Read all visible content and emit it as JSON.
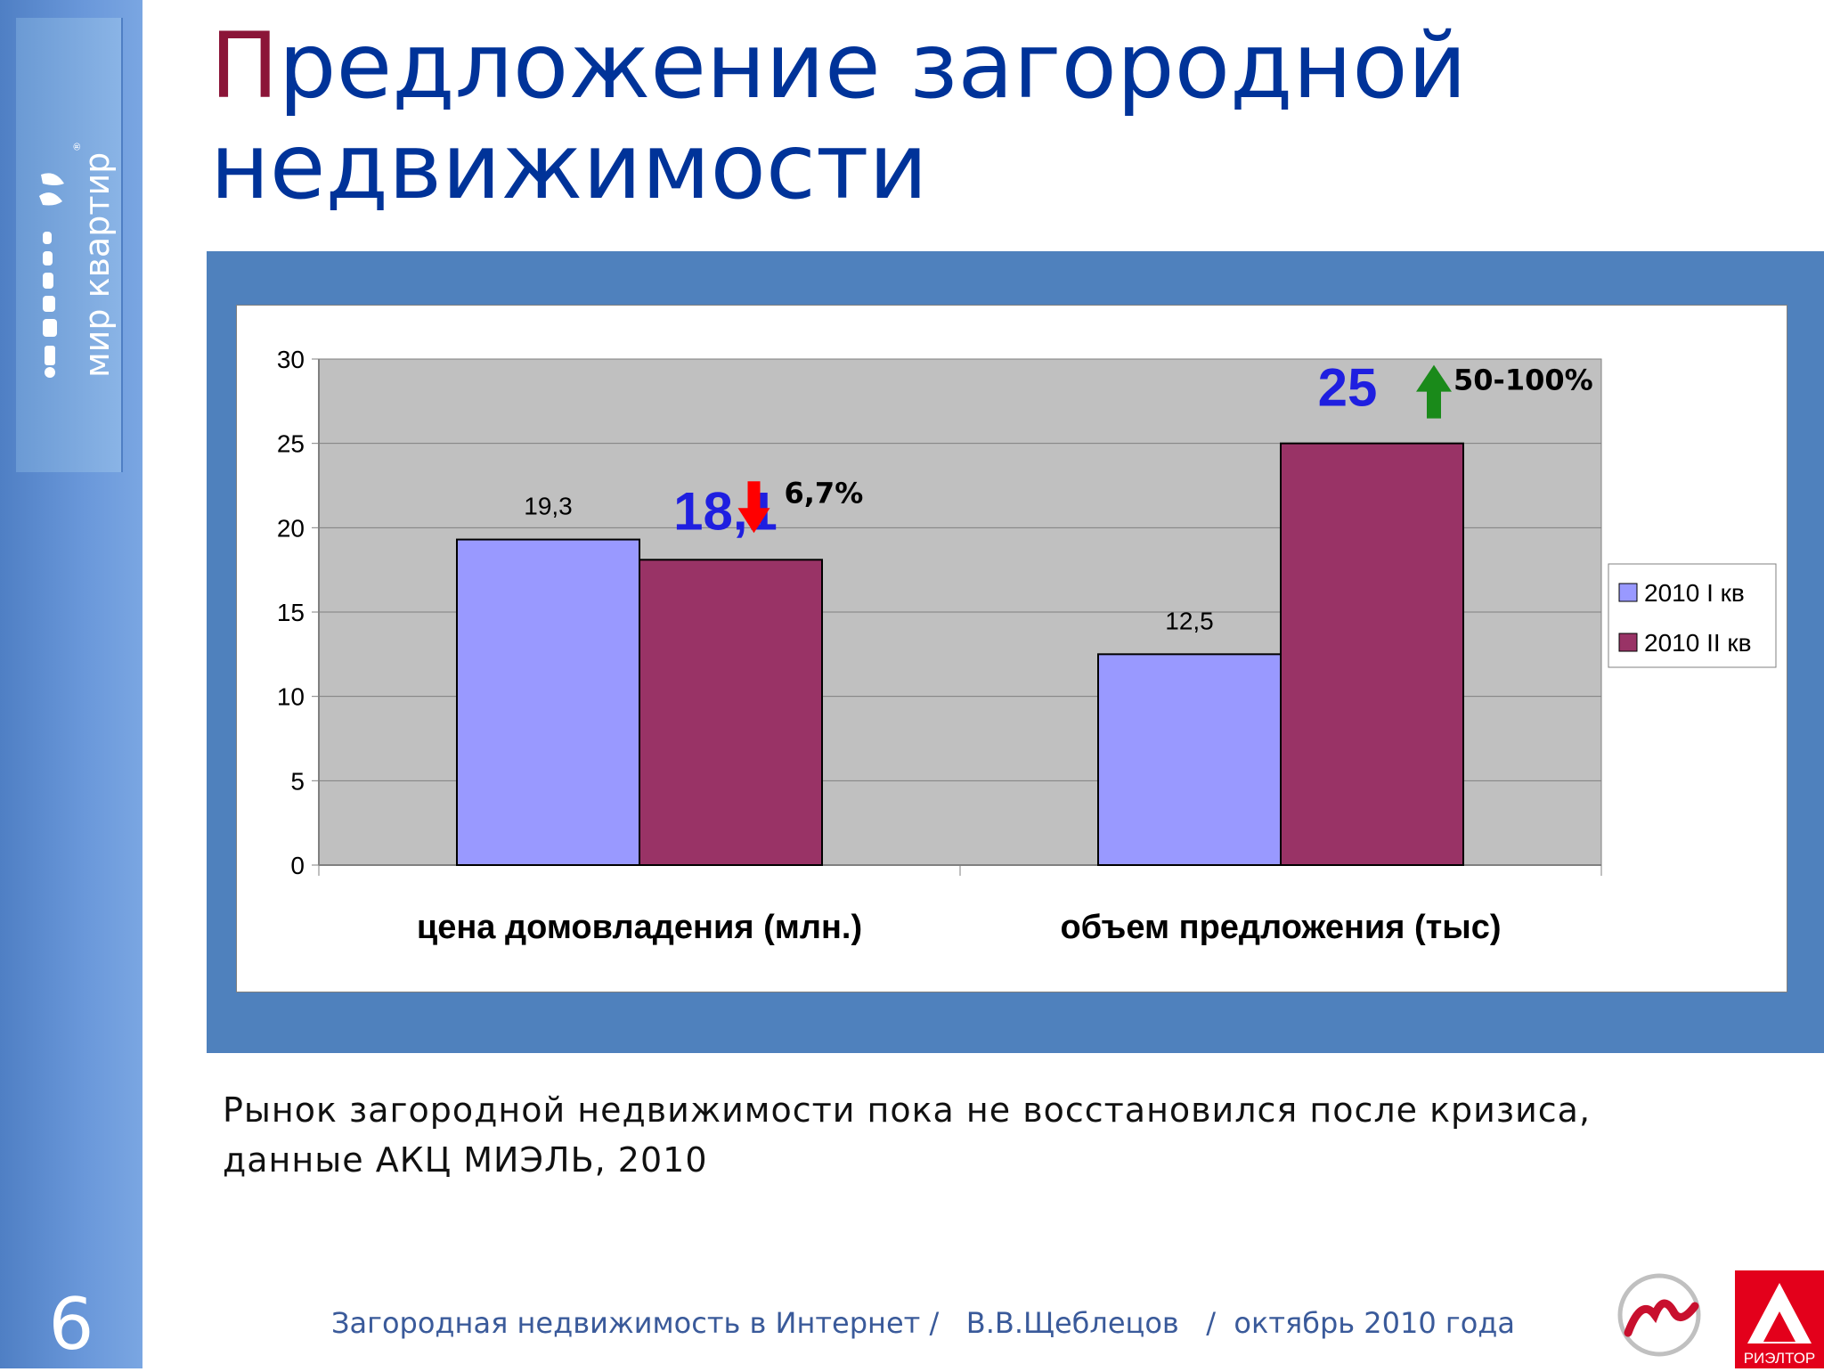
{
  "slide": {
    "title_first_letter": "П",
    "title_rest": "редложение загородной недвижимости",
    "number": "6",
    "brand_text": "мир квартир",
    "caption_line1": "Рынок загородной недвижимости пока не восстановился после кризиса,",
    "caption_line2": "данные АКЦ МИЭЛЬ, 2010",
    "footer": "Загородная недвижимость в Интернет /   В.В.Щеблецов   /  октябрь 2010 года",
    "logo_right_text": "РИЭЛТОР"
  },
  "chart_data": {
    "type": "bar",
    "categories": [
      "цена домовладения (млн.)",
      "объем предложения (тыс)"
    ],
    "series": [
      {
        "name": "2010 I кв",
        "values": [
          19.3,
          12.5
        ],
        "color": "#9999ff",
        "labels": [
          "19,3",
          "12,5"
        ]
      },
      {
        "name": "2010 II кв",
        "values": [
          18.1,
          25
        ],
        "color": "#993366",
        "labels": [
          "",
          ""
        ]
      }
    ],
    "ylim": [
      0,
      30
    ],
    "yticks": [
      "0",
      "5",
      "10",
      "15",
      "20",
      "25",
      "30"
    ],
    "grid": true,
    "plot_background": "#c0c0c0",
    "legend_position": "right",
    "annotations": [
      {
        "value_text": "18,1",
        "change_text": "6,7%",
        "direction": "down",
        "arrow_color": "#ff0000",
        "value_color": "#1f1fe0"
      },
      {
        "value_text": "25",
        "change_text": "50-100%",
        "direction": "up",
        "arrow_color": "#1a8a1a",
        "value_color": "#1f1fe0"
      }
    ]
  }
}
